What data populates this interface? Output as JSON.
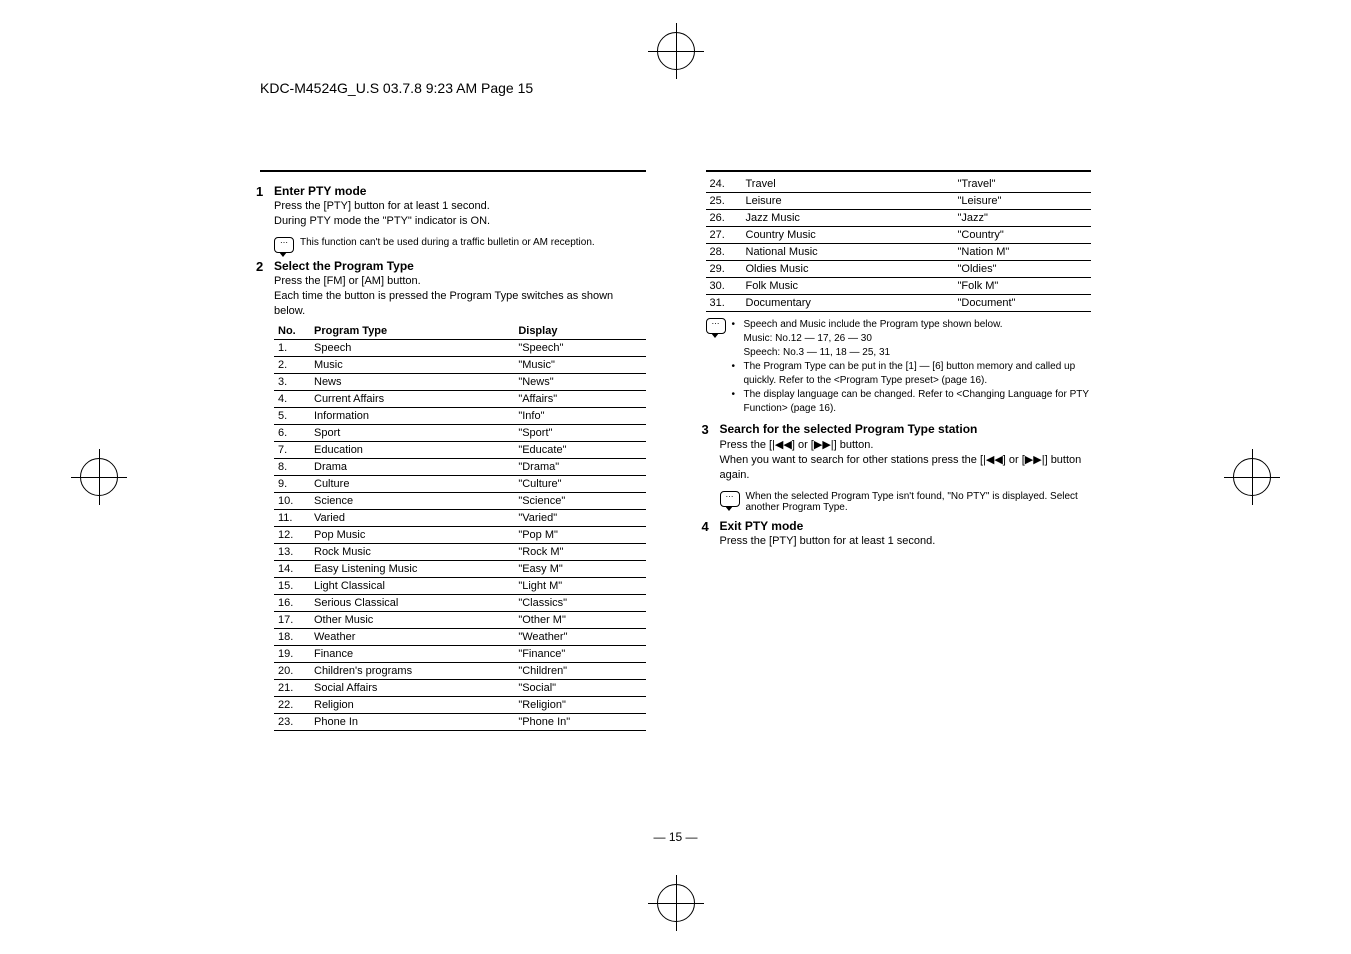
{
  "header": "KDC-M4524G_U.S  03.7.8  9:23 AM  Page 15",
  "page_marker": "— 15 —",
  "left": {
    "step1": {
      "num": "1",
      "title": "Enter PTY mode",
      "sub": "Press the [PTY] button for at least 1 second.",
      "body": "During PTY mode the \"PTY\" indicator is ON.",
      "note": "This function can't be used during a traffic bulletin or AM reception."
    },
    "step2": {
      "num": "2",
      "title": "Select the Program Type",
      "sub": "Press the [FM] or [AM] button.",
      "body": "Each time the button is pressed the Program Type switches as shown below.",
      "th_no": "No.",
      "th_pt": "Program Type",
      "th_disp": "Display"
    },
    "rows": [
      {
        "no": "1.",
        "pt": "Speech",
        "d": "\"Speech\""
      },
      {
        "no": "2.",
        "pt": "Music",
        "d": "\"Music\""
      },
      {
        "no": "3.",
        "pt": "News",
        "d": "\"News\""
      },
      {
        "no": "4.",
        "pt": "Current Affairs",
        "d": "\"Affairs\""
      },
      {
        "no": "5.",
        "pt": "Information",
        "d": "\"Info\""
      },
      {
        "no": "6.",
        "pt": "Sport",
        "d": "\"Sport\""
      },
      {
        "no": "7.",
        "pt": "Education",
        "d": "\"Educate\""
      },
      {
        "no": "8.",
        "pt": "Drama",
        "d": "\"Drama\""
      },
      {
        "no": "9.",
        "pt": "Culture",
        "d": "\"Culture\""
      },
      {
        "no": "10.",
        "pt": "Science",
        "d": "\"Science\""
      },
      {
        "no": "11.",
        "pt": "Varied",
        "d": "\"Varied\""
      },
      {
        "no": "12.",
        "pt": "Pop Music",
        "d": "\"Pop M\""
      },
      {
        "no": "13.",
        "pt": "Rock Music",
        "d": "\"Rock M\""
      },
      {
        "no": "14.",
        "pt": "Easy Listening Music",
        "d": "\"Easy M\""
      },
      {
        "no": "15.",
        "pt": "Light Classical",
        "d": "\"Light M\""
      },
      {
        "no": "16.",
        "pt": "Serious Classical",
        "d": "\"Classics\""
      },
      {
        "no": "17.",
        "pt": "Other Music",
        "d": "\"Other M\""
      },
      {
        "no": "18.",
        "pt": "Weather",
        "d": "\"Weather\""
      },
      {
        "no": "19.",
        "pt": "Finance",
        "d": "\"Finance\""
      },
      {
        "no": "20.",
        "pt": "Children's programs",
        "d": "\"Children\""
      },
      {
        "no": "21.",
        "pt": "Social Affairs",
        "d": "\"Social\""
      },
      {
        "no": "22.",
        "pt": "Religion",
        "d": "\"Religion\""
      },
      {
        "no": "23.",
        "pt": "Phone In",
        "d": "\"Phone In\""
      }
    ]
  },
  "right": {
    "rows": [
      {
        "no": "24.",
        "pt": "Travel",
        "d": "\"Travel\""
      },
      {
        "no": "25.",
        "pt": "Leisure",
        "d": "\"Leisure\""
      },
      {
        "no": "26.",
        "pt": "Jazz Music",
        "d": "\"Jazz\""
      },
      {
        "no": "27.",
        "pt": "Country Music",
        "d": "\"Country\""
      },
      {
        "no": "28.",
        "pt": "National Music",
        "d": "\"Nation M\""
      },
      {
        "no": "29.",
        "pt": "Oldies Music",
        "d": "\"Oldies\""
      },
      {
        "no": "30.",
        "pt": "Folk Music",
        "d": "\"Folk M\""
      },
      {
        "no": "31.",
        "pt": "Documentary",
        "d": "\"Document\""
      }
    ],
    "notes": {
      "b1": "Speech and Music include the Program type shown below.",
      "b1a": "Music: No.12 — 17, 26 — 30",
      "b1b": "Speech: No.3 — 11, 18 — 25, 31",
      "b2": "The Program Type can be put in the [1] — [6] button memory and called up quickly. Refer to the <Program Type preset> (page 16).",
      "b3": "The display language can be changed. Refer to <Changing Language for PTY Function> (page 16)."
    },
    "step3": {
      "num": "3",
      "title": "Search for the selected Program Type station",
      "sub": "Press the [|◀◀] or [▶▶|] button.",
      "body": "When you want to search for other stations press the [|◀◀] or [▶▶|] button again.",
      "note": "When the selected Program Type isn't found, \"No PTY\" is displayed. Select another Program Type."
    },
    "step4": {
      "num": "4",
      "title": "Exit PTY mode",
      "sub": "Press the [PTY] button for at least 1 second."
    }
  }
}
